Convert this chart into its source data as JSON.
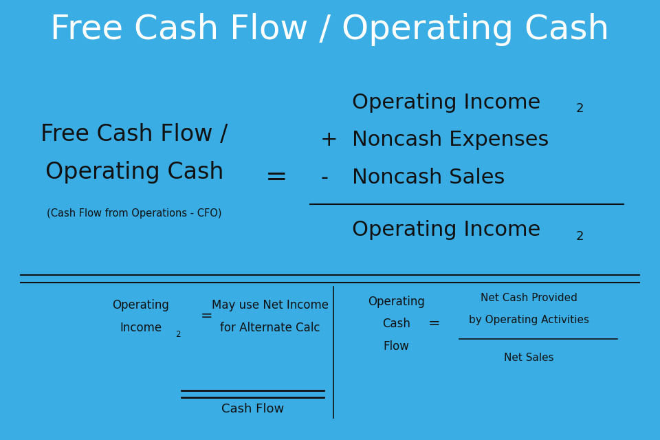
{
  "title": "Free Cash Flow / Operating Cash",
  "title_bg": "#3AADE4",
  "title_color": "white",
  "title_fontsize": 36,
  "bg_color": "white",
  "text_color": "#111111",
  "font_family": "DejaVu Sans",
  "main_left_line1": "Free Cash Flow /",
  "main_left_line2": "Operating Cash",
  "main_left_sub": "(Cash Flow from Operations - CFO)",
  "equals_sign": "=",
  "numerator_line1": "Operating Income",
  "numerator_line1_sub": "2",
  "numerator_op1": "+",
  "numerator_item1": "Noncash Expenses",
  "numerator_op2": "-",
  "numerator_item2": "Noncash Sales",
  "denominator": "Operating Income",
  "denominator_sub": "2",
  "bottom_left_label1": "Operating",
  "bottom_left_label2": "Income",
  "bottom_left_sub": "2",
  "bottom_left_eq": "=",
  "bottom_left_rhs1": "May use Net Income",
  "bottom_left_rhs2": "for Alternate Calc",
  "bottom_right_label1": "Operating",
  "bottom_right_label2": "Cash",
  "bottom_right_label3": "Flow",
  "bottom_right_eq": "=",
  "bottom_right_num1": "Net Cash Provided",
  "bottom_right_num2": "by Operating Activities",
  "bottom_right_den": "Net Sales",
  "bottom_label": "Cash Flow"
}
